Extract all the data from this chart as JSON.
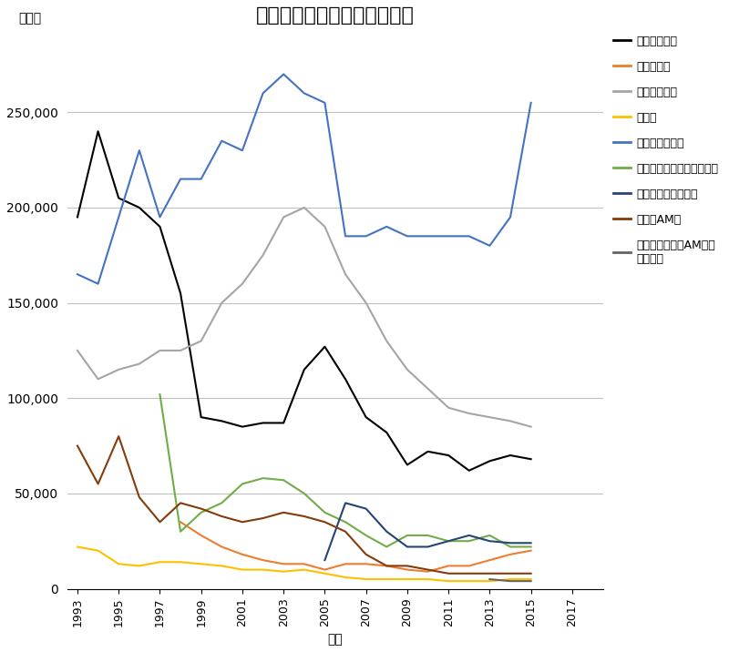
{
  "title": "種類別オペレーション売上高",
  "ylabel": "百万円",
  "xlabel": "年度",
  "years": [
    1993,
    1994,
    1995,
    1996,
    1997,
    1998,
    1999,
    2000,
    2001,
    2002,
    2003,
    2004,
    2005,
    2006,
    2007,
    2008,
    2009,
    2010,
    2011,
    2012,
    2013,
    2014,
    2015,
    2016,
    2017
  ],
  "xtick_years": [
    1993,
    1995,
    1997,
    1999,
    2001,
    2003,
    2005,
    2007,
    2009,
    2011,
    2013,
    2015,
    2017
  ],
  "series": {
    "テレビゲーム": {
      "color": "#000000",
      "data": [
        [
          1993,
          195000
        ],
        [
          1994,
          240000
        ],
        [
          1995,
          205000
        ],
        [
          1996,
          200000
        ],
        [
          1997,
          190000
        ],
        [
          1998,
          155000
        ],
        [
          1999,
          90000
        ],
        [
          2000,
          88000
        ],
        [
          2001,
          85000
        ],
        [
          2002,
          87000
        ],
        [
          2003,
          87000
        ],
        [
          2004,
          115000
        ],
        [
          2005,
          127000
        ],
        [
          2006,
          110000
        ],
        [
          2007,
          90000
        ],
        [
          2008,
          82000
        ],
        [
          2009,
          65000
        ],
        [
          2010,
          72000
        ],
        [
          2011,
          70000
        ],
        [
          2012,
          62000
        ],
        [
          2013,
          67000
        ],
        [
          2014,
          70000
        ],
        [
          2015,
          68000
        ]
      ]
    },
    "音楽ゲーム": {
      "color": "#ED7D31",
      "data": [
        [
          1998,
          35000
        ],
        [
          1999,
          28000
        ],
        [
          2000,
          22000
        ],
        [
          2001,
          18000
        ],
        [
          2002,
          15000
        ],
        [
          2003,
          13000
        ],
        [
          2004,
          13000
        ],
        [
          2005,
          10000
        ],
        [
          2006,
          13000
        ],
        [
          2007,
          13000
        ],
        [
          2008,
          12000
        ],
        [
          2009,
          10000
        ],
        [
          2010,
          9000
        ],
        [
          2011,
          12000
        ],
        [
          2012,
          12000
        ],
        [
          2013,
          15000
        ],
        [
          2014,
          18000
        ],
        [
          2015,
          20000
        ]
      ]
    },
    "メダルゲーム": {
      "color": "#A5A5A5",
      "data": [
        [
          1993,
          125000
        ],
        [
          1994,
          110000
        ],
        [
          1995,
          115000
        ],
        [
          1996,
          118000
        ],
        [
          1997,
          125000
        ],
        [
          1998,
          125000
        ],
        [
          1999,
          130000
        ],
        [
          2000,
          150000
        ],
        [
          2001,
          160000
        ],
        [
          2002,
          175000
        ],
        [
          2003,
          195000
        ],
        [
          2004,
          200000
        ],
        [
          2005,
          190000
        ],
        [
          2006,
          165000
        ],
        [
          2007,
          150000
        ],
        [
          2008,
          130000
        ],
        [
          2009,
          115000
        ],
        [
          2010,
          105000
        ],
        [
          2011,
          95000
        ],
        [
          2012,
          92000
        ],
        [
          2013,
          90000
        ],
        [
          2014,
          88000
        ],
        [
          2015,
          85000
        ]
      ]
    },
    "乗り物": {
      "color": "#FFC000",
      "data": [
        [
          1993,
          22000
        ],
        [
          1994,
          20000
        ],
        [
          1995,
          13000
        ],
        [
          1996,
          12000
        ],
        [
          1997,
          14000
        ],
        [
          1998,
          14000
        ],
        [
          1999,
          13000
        ],
        [
          2000,
          12000
        ],
        [
          2001,
          10000
        ],
        [
          2002,
          10000
        ],
        [
          2003,
          9000
        ],
        [
          2004,
          10000
        ],
        [
          2005,
          8000
        ],
        [
          2006,
          6000
        ],
        [
          2007,
          5000
        ],
        [
          2008,
          5000
        ],
        [
          2009,
          5000
        ],
        [
          2010,
          5000
        ],
        [
          2011,
          4000
        ],
        [
          2012,
          4000
        ],
        [
          2013,
          4000
        ],
        [
          2014,
          5000
        ],
        [
          2015,
          5000
        ]
      ]
    },
    "プライズゲーム": {
      "color": "#4472C4",
      "data": [
        [
          1993,
          165000
        ],
        [
          1994,
          160000
        ],
        [
          1995,
          195000
        ],
        [
          1996,
          230000
        ],
        [
          1997,
          195000
        ],
        [
          1998,
          215000
        ],
        [
          1999,
          215000
        ],
        [
          2000,
          235000
        ],
        [
          2001,
          230000
        ],
        [
          2002,
          260000
        ],
        [
          2003,
          270000
        ],
        [
          2004,
          260000
        ],
        [
          2005,
          255000
        ],
        [
          2006,
          185000
        ],
        [
          2007,
          185000
        ],
        [
          2008,
          190000
        ],
        [
          2009,
          185000
        ],
        [
          2010,
          185000
        ],
        [
          2011,
          185000
        ],
        [
          2012,
          185000
        ],
        [
          2013,
          180000
        ],
        [
          2014,
          195000
        ],
        [
          2015,
          255000
        ]
      ]
    },
    "アミューズメントベンダー": {
      "color": "#70AD47",
      "data": [
        [
          1997,
          102000
        ],
        [
          1998,
          30000
        ],
        [
          1999,
          40000
        ],
        [
          2000,
          45000
        ],
        [
          2001,
          55000
        ],
        [
          2002,
          58000
        ],
        [
          2003,
          57000
        ],
        [
          2004,
          50000
        ],
        [
          2005,
          40000
        ],
        [
          2006,
          35000
        ],
        [
          2007,
          28000
        ],
        [
          2008,
          22000
        ],
        [
          2009,
          28000
        ],
        [
          2010,
          28000
        ],
        [
          2011,
          25000
        ],
        [
          2012,
          25000
        ],
        [
          2013,
          28000
        ],
        [
          2014,
          22000
        ],
        [
          2015,
          22000
        ]
      ]
    },
    "キッズカードゲーム": {
      "color": "#264478",
      "data": [
        [
          2005,
          15000
        ],
        [
          2006,
          45000
        ],
        [
          2007,
          42000
        ],
        [
          2008,
          30000
        ],
        [
          2009,
          22000
        ],
        [
          2010,
          22000
        ],
        [
          2011,
          25000
        ],
        [
          2012,
          28000
        ],
        [
          2013,
          25000
        ],
        [
          2014,
          24000
        ],
        [
          2015,
          24000
        ]
      ]
    },
    "その他AM機": {
      "color": "#843C0C",
      "data": [
        [
          1993,
          75000
        ],
        [
          1994,
          55000
        ],
        [
          1995,
          80000
        ],
        [
          1996,
          48000
        ],
        [
          1997,
          35000
        ],
        [
          1998,
          45000
        ],
        [
          1999,
          42000
        ],
        [
          2000,
          38000
        ],
        [
          2001,
          35000
        ],
        [
          2002,
          37000
        ],
        [
          2003,
          40000
        ],
        [
          2004,
          38000
        ],
        [
          2005,
          35000
        ],
        [
          2006,
          30000
        ],
        [
          2007,
          18000
        ],
        [
          2008,
          12000
        ],
        [
          2009,
          12000
        ],
        [
          2010,
          10000
        ],
        [
          2011,
          8000
        ],
        [
          2012,
          8000
        ],
        [
          2013,
          8000
        ],
        [
          2014,
          8000
        ],
        [
          2015,
          8000
        ]
      ]
    },
    "ガチャガチャ（AM施設\n内のみ）": {
      "color": "#636363",
      "data": [
        [
          2013,
          5000
        ],
        [
          2014,
          4000
        ],
        [
          2015,
          4000
        ]
      ]
    }
  },
  "ylim": [
    0,
    290000
  ],
  "yticks": [
    0,
    50000,
    100000,
    150000,
    200000,
    250000
  ],
  "figsize": [
    8.0,
    7.16
  ],
  "dpi": 100,
  "background_color": "#FFFFFF",
  "grid_color": "#C0C0C0",
  "legend_fontsize": 9,
  "title_fontsize": 16,
  "axis_fontsize": 10
}
